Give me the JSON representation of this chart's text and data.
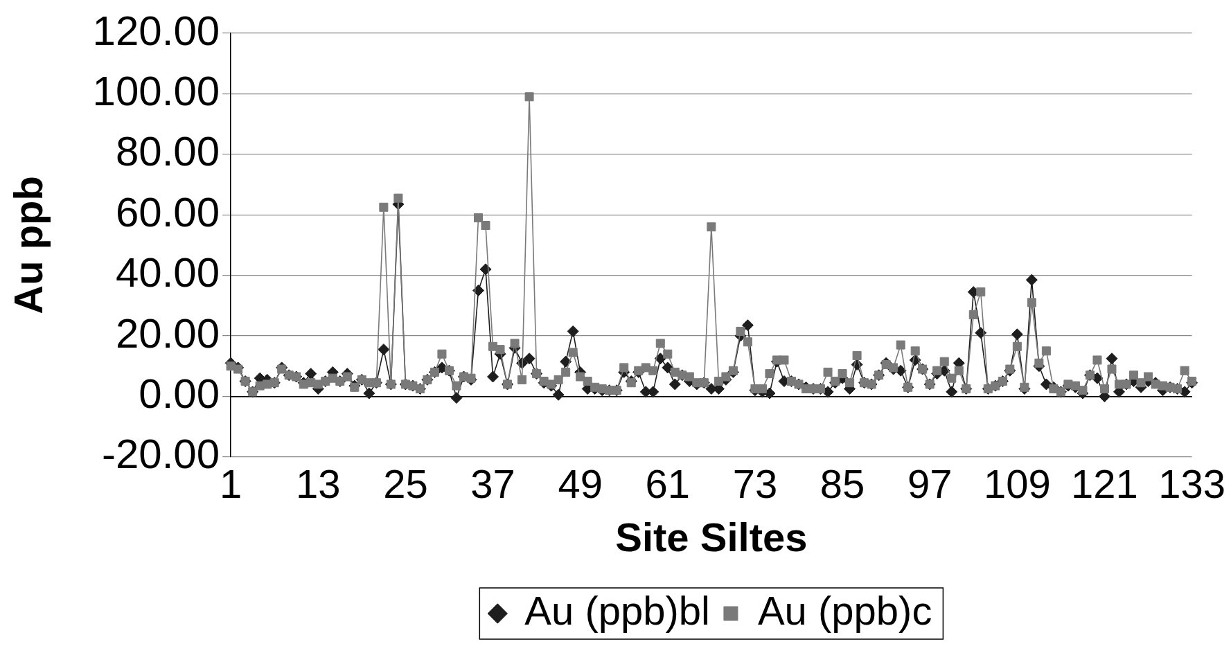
{
  "chart_data": {
    "type": "line",
    "xlabel": "Site Siltes",
    "ylabel": "Au ppb",
    "categories": [
      "1",
      null,
      null,
      null,
      null,
      null,
      null,
      null,
      null,
      null,
      null,
      null,
      "13",
      null,
      null,
      null,
      null,
      null,
      null,
      null,
      null,
      null,
      null,
      null,
      "25",
      null,
      null,
      null,
      null,
      null,
      null,
      null,
      null,
      null,
      null,
      null,
      "37",
      null,
      null,
      null,
      null,
      null,
      null,
      null,
      null,
      null,
      null,
      null,
      "49",
      null,
      null,
      null,
      null,
      null,
      null,
      null,
      null,
      null,
      null,
      null,
      "61",
      null,
      null,
      null,
      null,
      null,
      null,
      null,
      null,
      null,
      null,
      null,
      "73",
      null,
      null,
      null,
      null,
      null,
      null,
      null,
      null,
      null,
      null,
      null,
      "85",
      null,
      null,
      null,
      null,
      null,
      null,
      null,
      null,
      null,
      null,
      null,
      "97",
      null,
      null,
      null,
      null,
      null,
      null,
      null,
      null,
      null,
      null,
      null,
      "109",
      null,
      null,
      null,
      null,
      null,
      null,
      null,
      null,
      null,
      null,
      null,
      "121",
      null,
      null,
      null,
      null,
      null,
      null,
      null,
      null,
      null,
      null,
      null,
      "133"
    ],
    "series": [
      {
        "name": "Au (ppb)bl",
        "color": "#1e1e1e",
        "marker": "diamond",
        "values": [
          11,
          9.5,
          5,
          1.5,
          6,
          5.5,
          4.5,
          9.5,
          7,
          6.5,
          4.5,
          7.5,
          2.5,
          5,
          8,
          5,
          7.5,
          3.5,
          5.5,
          1,
          4.5,
          15.5,
          4,
          63.5,
          4,
          3.5,
          2.5,
          5.5,
          8,
          9.5,
          8.5,
          -0.5,
          6.5,
          5.5,
          35,
          42,
          6.5,
          14,
          4,
          16,
          11,
          12.5,
          7.5,
          4.5,
          3.5,
          0.5,
          11.5,
          21.5,
          8,
          2.5,
          2.5,
          2,
          2,
          2,
          8,
          5,
          8,
          1.5,
          1.5,
          12.5,
          9.5,
          4,
          7,
          5,
          4,
          4.5,
          2.5,
          2.5,
          5.5,
          8,
          20,
          23.5,
          2,
          1.5,
          1,
          11.5,
          5,
          5,
          4,
          3,
          2.5,
          2.5,
          1.5,
          4.5,
          6,
          2.5,
          10.5,
          4.5,
          4,
          7,
          11,
          9,
          8.5,
          3,
          12,
          9,
          4,
          7.5,
          8.5,
          1.5,
          11,
          2.5,
          34.5,
          21,
          2.5,
          3.5,
          5,
          8.5,
          20.5,
          2.5,
          38.5,
          10,
          4,
          3,
          1.5,
          3.5,
          3,
          1,
          7,
          6,
          0,
          12.5,
          1.5,
          4,
          5,
          3,
          5,
          4.5,
          2,
          3,
          2.5,
          1.5,
          4.5
        ]
      },
      {
        "name": "Au (ppb)c",
        "color": "#7a7a7a",
        "marker": "square",
        "values": [
          10,
          9,
          5,
          1.5,
          3.5,
          4,
          4.5,
          9,
          7,
          6.5,
          4,
          4.5,
          4,
          5,
          6,
          5,
          6.5,
          3,
          5.5,
          4.5,
          4.5,
          62.5,
          4,
          65.5,
          4,
          3.5,
          2.5,
          5.5,
          8,
          14,
          8.5,
          3.5,
          6.5,
          6,
          59,
          56.5,
          16.5,
          15.5,
          4,
          17.5,
          5.5,
          99,
          7.5,
          5,
          4,
          5.5,
          8,
          14.5,
          6.5,
          5,
          3,
          2.5,
          2,
          2,
          9.5,
          4.5,
          8.5,
          9.5,
          8.5,
          17.5,
          14,
          8,
          7,
          6.5,
          4.5,
          4.5,
          56,
          5,
          6.5,
          8.5,
          21.5,
          18,
          2.5,
          2.5,
          7.5,
          12,
          12,
          5,
          4,
          2.5,
          2.5,
          2.5,
          8,
          5,
          7.5,
          4.5,
          13.5,
          4.5,
          4,
          7,
          10.5,
          9.5,
          17,
          3,
          15,
          9,
          4,
          8.5,
          11.5,
          6,
          8.5,
          2.5,
          27,
          34.5,
          2.5,
          3.5,
          5,
          9,
          16.5,
          3,
          31,
          11,
          15,
          2.5,
          1.5,
          4,
          3.5,
          2,
          7,
          12,
          2.5,
          9,
          4,
          4,
          7,
          4.5,
          6.5,
          4,
          3.5,
          3,
          2.5,
          8.5,
          5
        ]
      }
    ],
    "ylim": [
      -20,
      120
    ],
    "yticks": [
      {
        "value": -20,
        "label": "-20.00"
      },
      {
        "value": 0,
        "label": "0.00"
      },
      {
        "value": 20,
        "label": "20.00"
      },
      {
        "value": 40,
        "label": "40.00"
      },
      {
        "value": 60,
        "label": "60.00"
      },
      {
        "value": 80,
        "label": "80.00"
      },
      {
        "value": 100,
        "label": "100.00"
      },
      {
        "value": 120,
        "label": "120.00"
      }
    ],
    "grid": "y",
    "legend": "bottom"
  }
}
